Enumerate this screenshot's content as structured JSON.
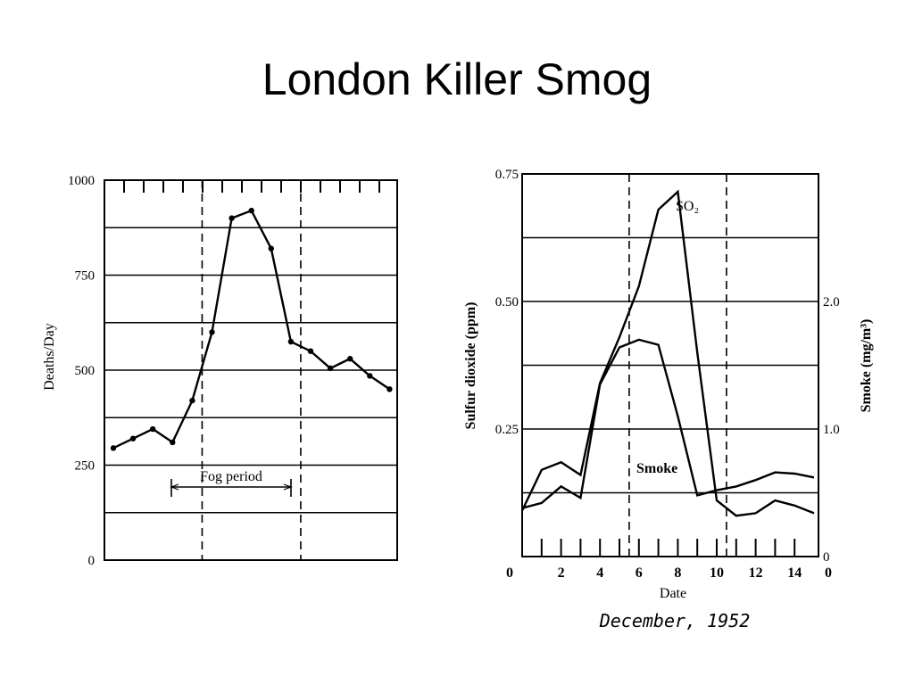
{
  "slide": {
    "title": "London Killer Smog"
  },
  "chart_data": [
    {
      "type": "line",
      "ylabel": "Deaths/Day",
      "ylim": [
        0,
        1000
      ],
      "yticks": [
        "0",
        "250",
        "500",
        "750",
        "1000"
      ],
      "grid": true,
      "series": [
        {
          "x": [
            1,
            2,
            3,
            4,
            5,
            6,
            7,
            8,
            9,
            10,
            11,
            12,
            13,
            14,
            15
          ],
          "values": [
            295,
            320,
            345,
            310,
            420,
            600,
            900,
            920,
            820,
            575,
            550,
            505,
            530,
            485,
            450
          ]
        }
      ],
      "fog_period": {
        "start": 5.5,
        "end": 10.5
      },
      "annotation": "Fog period"
    },
    {
      "type": "line",
      "ylabel": "Sulfur dioxide (ppm)",
      "y2label": "Smoke (mg/m³)",
      "xlabel": "Date",
      "x_caption": "December, 1952",
      "ylim": [
        0,
        0.75
      ],
      "y2lim": [
        0,
        3.0
      ],
      "yticks": [
        "0.25",
        "0.50",
        "0.75"
      ],
      "y2ticks": [
        "0",
        "1.0",
        "2.0"
      ],
      "xticks": [
        "0",
        "2",
        "4",
        "6",
        "8",
        "10",
        "12",
        "14",
        "0"
      ],
      "grid": true,
      "series": [
        {
          "name": "SO₂",
          "x": [
            0,
            1,
            2,
            3,
            4,
            5,
            6,
            7,
            8,
            9,
            10,
            11,
            12,
            13,
            14,
            15
          ],
          "values": [
            0.09,
            0.17,
            0.185,
            0.16,
            0.34,
            0.43,
            0.53,
            0.68,
            0.715,
            0.4,
            0.11,
            0.08,
            0.085,
            0.11,
            0.1,
            0.085
          ]
        },
        {
          "name": "Smoke",
          "x": [
            0,
            1,
            2,
            3,
            4,
            5,
            6,
            7,
            8,
            9,
            10,
            11,
            12,
            13,
            14,
            15
          ],
          "values": [
            0.38,
            0.42,
            0.55,
            0.46,
            1.35,
            1.64,
            1.7,
            1.66,
            1.1,
            0.48,
            0.52,
            0.55,
            0.6,
            0.66,
            0.65,
            0.62
          ]
        }
      ],
      "fog_period": {
        "start": 5.5,
        "end": 10.5
      }
    }
  ]
}
